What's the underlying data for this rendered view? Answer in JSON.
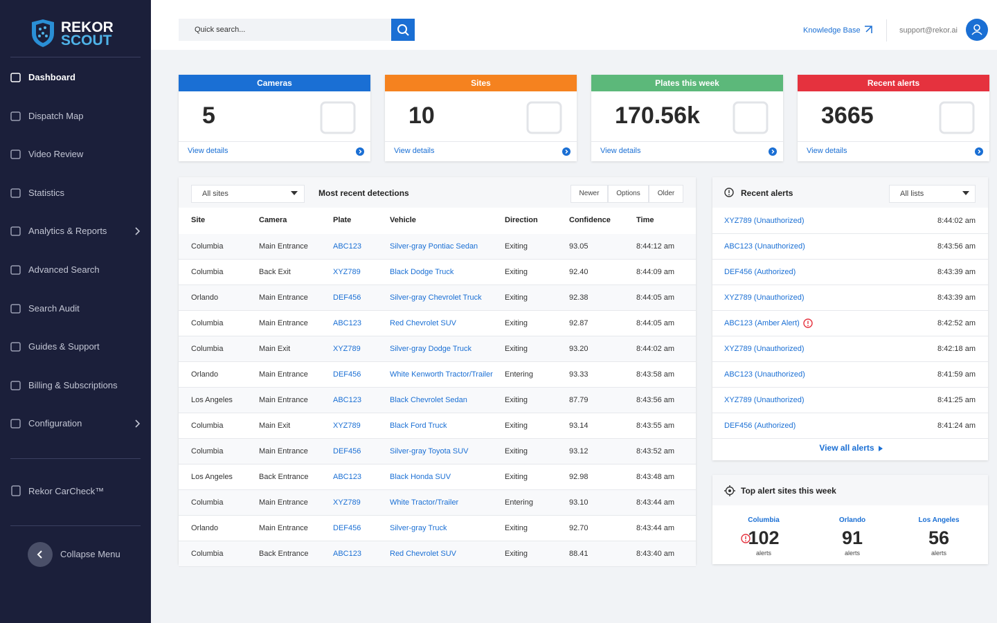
{
  "brand": {
    "line1": "REKOR",
    "line2": "SCOUT"
  },
  "nav": {
    "items": [
      {
        "label": "Dashboard",
        "active": true
      },
      {
        "label": "Dispatch Map"
      },
      {
        "label": "Video Review"
      },
      {
        "label": "Statistics"
      },
      {
        "label": "Analytics & Reports",
        "submenu": true
      },
      {
        "label": "Advanced Search"
      },
      {
        "label": "Search Audit"
      },
      {
        "label": "Guides & Support"
      },
      {
        "label": "Billing & Subscriptions"
      },
      {
        "label": "Configuration",
        "submenu": true
      }
    ],
    "carcheck": "Rekor CarCheck™",
    "collapse": "Collapse Menu"
  },
  "header": {
    "search_placeholder": "Quick search...",
    "knowledge_base": "Knowledge Base",
    "email": "support@rekor.ai"
  },
  "cards": [
    {
      "title": "Cameras",
      "value": "5",
      "link": "View details",
      "color": "#1a6fd4"
    },
    {
      "title": "Sites",
      "value": "10",
      "link": "View details",
      "color": "#f5821f"
    },
    {
      "title": "Plates this week",
      "value": "170.56k",
      "link": "View details",
      "color": "#5cb87a"
    },
    {
      "title": "Recent alerts",
      "value": "3665",
      "link": "View details",
      "color": "#e5323e"
    }
  ],
  "detections": {
    "filter": "All sites",
    "title": "Most recent detections",
    "buttons": [
      "Newer",
      "Options",
      "Older"
    ],
    "columns": [
      "Site",
      "Camera",
      "Plate",
      "Vehicle",
      "Direction",
      "Confidence",
      "Time"
    ],
    "rows": [
      [
        "Columbia",
        "Main Entrance",
        "ABC123",
        "Silver-gray Pontiac Sedan",
        "Exiting",
        "93.05",
        "8:44:12 am"
      ],
      [
        "Columbia",
        "Back Exit",
        "XYZ789",
        "Black Dodge Truck",
        "Exiting",
        "92.40",
        "8:44:09 am"
      ],
      [
        "Orlando",
        "Main Entrance",
        "DEF456",
        "Silver-gray Chevrolet Truck",
        "Exiting",
        "92.38",
        "8:44:05 am"
      ],
      [
        "Columbia",
        "Main Entrance",
        "ABC123",
        "Red Chevrolet SUV",
        "Exiting",
        "92.87",
        "8:44:05 am"
      ],
      [
        "Columbia",
        "Main Exit",
        "XYZ789",
        "Silver-gray Dodge Truck",
        "Exiting",
        "93.20",
        "8:44:02 am"
      ],
      [
        "Orlando",
        "Main Entrance",
        "DEF456",
        "White Kenworth Tractor/Trailer",
        "Entering",
        "93.33",
        "8:43:58 am"
      ],
      [
        "Los Angeles",
        "Main Entrance",
        "ABC123",
        "Black Chevrolet Sedan",
        "Exiting",
        "87.79",
        "8:43:56 am"
      ],
      [
        "Columbia",
        "Main Exit",
        "XYZ789",
        "Black Ford Truck",
        "Exiting",
        "93.14",
        "8:43:55 am"
      ],
      [
        "Columbia",
        "Main Entrance",
        "DEF456",
        "Silver-gray Toyota SUV",
        "Exiting",
        "93.12",
        "8:43:52 am"
      ],
      [
        "Los Angeles",
        "Back Entrance",
        "ABC123",
        "Black Honda SUV",
        "Exiting",
        "92.98",
        "8:43:48 am"
      ],
      [
        "Columbia",
        "Main Entrance",
        "XYZ789",
        "White Tractor/Trailer",
        "Entering",
        "93.10",
        "8:43:44 am"
      ],
      [
        "Orlando",
        "Main Entrance",
        "DEF456",
        "Silver-gray Truck",
        "Exiting",
        "92.70",
        "8:43:44 am"
      ],
      [
        "Columbia",
        "Back Entrance",
        "ABC123",
        "Red Chevrolet SUV",
        "Exiting",
        "88.41",
        "8:43:40 am"
      ]
    ]
  },
  "alerts": {
    "title": "Recent alerts",
    "filter": "All lists",
    "items": [
      {
        "label": "XYZ789 (Unauthorized)",
        "time": "8:44:02 am"
      },
      {
        "label": "ABC123 (Unauthorized)",
        "time": "8:43:56 am"
      },
      {
        "label": "DEF456 (Authorized)",
        "time": "8:43:39 am"
      },
      {
        "label": "XYZ789 (Unauthorized)",
        "time": "8:43:39 am"
      },
      {
        "label": "ABC123 (Amber Alert)",
        "time": "8:42:52 am",
        "alert": true
      },
      {
        "label": "XYZ789 (Unauthorized)",
        "time": "8:42:18 am"
      },
      {
        "label": "ABC123 (Unauthorized)",
        "time": "8:41:59 am"
      },
      {
        "label": "XYZ789 (Unauthorized)",
        "time": "8:41:25 am"
      },
      {
        "label": "DEF456 (Authorized)",
        "time": "8:41:24 am"
      }
    ],
    "view_all": "View all alerts"
  },
  "top_sites": {
    "title": "Top alert sites this week",
    "sites": [
      {
        "name": "Columbia",
        "count": "102",
        "unit": "alerts",
        "alert": true
      },
      {
        "name": "Orlando",
        "count": "91",
        "unit": "alerts"
      },
      {
        "name": "Los Angeles",
        "count": "56",
        "unit": "alerts"
      }
    ]
  }
}
